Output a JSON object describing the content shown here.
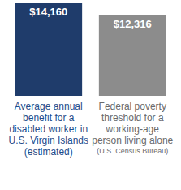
{
  "chart_data": {
    "type": "bar",
    "categories": [
      "Average annual benefit for a disabled worker in U.S. Virgin Islands (estimated)",
      "Federal poverty threshold for a working-age person living alone (U.S. Census Bureau)"
    ],
    "values": [
      14160,
      12316
    ],
    "value_labels": [
      "$14,160",
      "$12,316"
    ],
    "colors": [
      "#1f3c6b",
      "#8c8c8c"
    ],
    "ylim": [
      0,
      14160
    ],
    "grid": false,
    "data_labels": true,
    "tick_labels": "x"
  }
}
